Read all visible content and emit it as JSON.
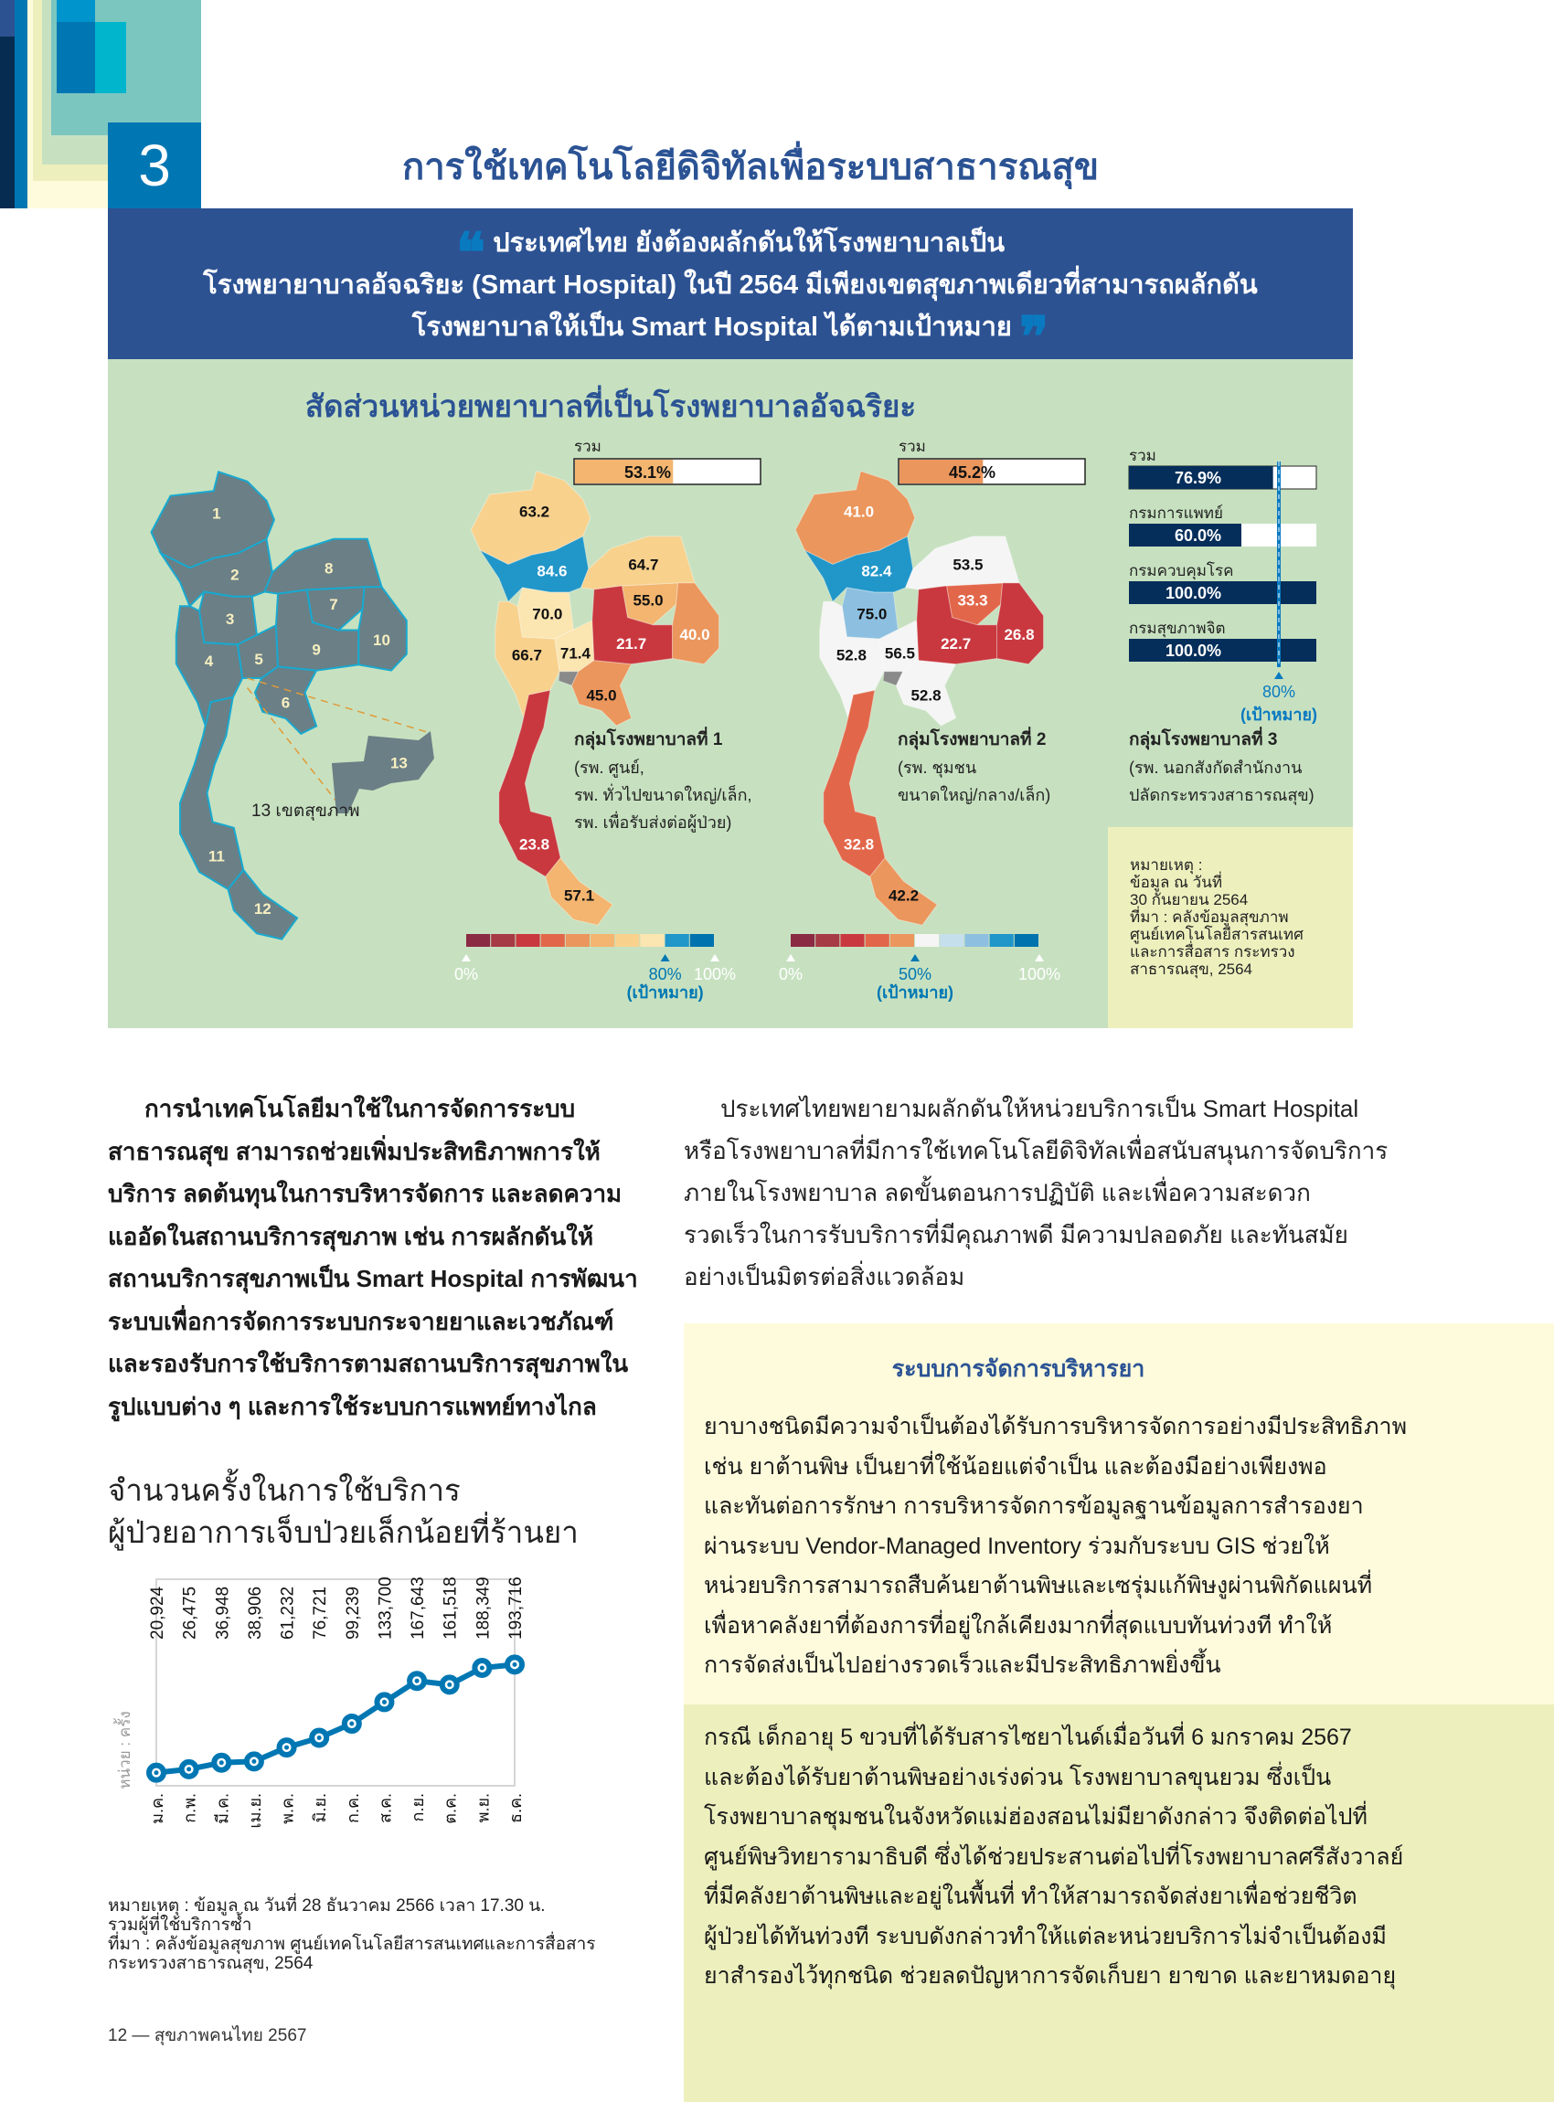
{
  "chapter": {
    "number": "3",
    "title": "การใช้เทคโนโลยีดิจิทัลเพื่อระบบสาธารณสุข"
  },
  "quote": {
    "lines": [
      "ประเทศไทย ยังต้องผลักดันให้โรงพยาบาลเป็น",
      "โรงพยายาบาลอัจฉริยะ (Smart Hospital) ในปี 2564 มีเพียงเขตสุขภาพเดียวที่สามารถผลักดัน",
      "โรงพยาบาลให้เป็น Smart Hospital ได้ตามเป้าหมาย"
    ]
  },
  "infographic": {
    "title": "สัดส่วนหน่วยพยาบาลที่เป็นโรงพยาบาลอัจฉริยะ",
    "region_map": {
      "caption": "13 เขตสุขภาพ",
      "region_labels": [
        "1",
        "2",
        "3",
        "4",
        "5",
        "6",
        "7",
        "8",
        "9",
        "10",
        "11",
        "12",
        "13"
      ],
      "fill_color": "#6b7f86",
      "border_color": "#18a9d0"
    },
    "total_label": "รวม",
    "groups": [
      {
        "title": "กลุ่มโรงพยาบาลที่ 1",
        "desc": [
          "(รพ. ศูนย์,",
          "รพ. ทั่วไปขนาดใหญ่/เล็ก,",
          "รพ. เพื่อรับส่งต่อผู้ป่วย)"
        ],
        "total": 53.1,
        "total_text": "53.1%",
        "total_color": "#f3b56f",
        "region_values": [
          63.2,
          84.6,
          70.0,
          66.7,
          71.4,
          45.0,
          55.0,
          64.7,
          21.7,
          40.0,
          23.8,
          57.1
        ],
        "region_value_text": [
          "63.2",
          "84.6",
          "70.0",
          "66.7",
          "71.4",
          "45.0",
          "55.0",
          "64.7",
          "21.7",
          "40.0",
          "23.8",
          "57.1"
        ],
        "scale_colors": [
          "#8a2a43",
          "#a63a45",
          "#c9383f",
          "#e2674a",
          "#eb965c",
          "#f3b56f",
          "#f8d18d",
          "#fbe5b0",
          "#2196c9",
          "#0072ad"
        ],
        "scale_labels": {
          "min": "0%",
          "target": "80%",
          "max": "100%",
          "target_note": "(เป้าหมาย)"
        },
        "target": 80
      },
      {
        "title": "กลุ่มโรงพยาบาลที่ 2",
        "desc": [
          "(รพ. ชุมชน",
          "ขนาดใหญ่/กลาง/เล็ก)"
        ],
        "total": 45.2,
        "total_text": "45.2%",
        "total_color": "#eb965c",
        "region_values": [
          41.0,
          82.4,
          75.0,
          52.8,
          56.5,
          52.8,
          33.3,
          53.5,
          22.7,
          26.8,
          32.8,
          42.2
        ],
        "region_value_text": [
          "41.0",
          "82.4",
          "75.0",
          "52.8",
          "56.5",
          "52.8",
          "33.3",
          "53.5",
          "22.7",
          "26.8",
          "32.8",
          "42.2"
        ],
        "scale_colors": [
          "#8a2a43",
          "#a63a45",
          "#c9383f",
          "#e2674a",
          "#eb965c",
          "#f5f5f5",
          "#c6dfec",
          "#8dc0e0",
          "#2196c9",
          "#0072ad"
        ],
        "scale_labels": {
          "min": "0%",
          "target": "50%",
          "max": "100%",
          "target_note": "(เป้าหมาย)"
        },
        "target": 50
      },
      {
        "title": "กลุ่มโรงพยาบาลที่ 3",
        "desc": [
          "(รพ. นอกสังกัดสำนักงาน",
          "ปลัดกระทรวงสาธารณสุข)"
        ],
        "bars": [
          {
            "label": "รวม",
            "value": 76.9,
            "text": "76.9%"
          },
          {
            "label": "กรมการแพทย์",
            "value": 60.0,
            "text": "60.0%"
          },
          {
            "label": "กรมควบคุมโรค",
            "value": 100.0,
            "text": "100.0%"
          },
          {
            "label": "กรมสุขภาพจิต",
            "value": 100.0,
            "text": "100.0%"
          }
        ],
        "bar_color": "#052e5a",
        "target": 80,
        "target_text": "80%",
        "target_note": "(เป้าหมาย)"
      }
    ],
    "note": [
      "หมายเหตุ :",
      "ข้อมูล ณ วันที่",
      "30 กันยายน 2564",
      "ที่มา : คลังข้อมูลสุขภาพ",
      "ศูนย์เทคโนโลยีสารสนเทศ",
      "และการสื่อสาร กระทรวง",
      "สาธารณสุข, 2564"
    ]
  },
  "left_paragraph": [
    "การนำเทคโนโลยีมาใช้ในการจัดการระบบ",
    "สาธารณสุข สามารถช่วยเพิ่มประสิทธิภาพการให้",
    "บริการ ลดต้นทุนในการบริหารจัดการ และลดความ",
    "แออัดในสถานบริการสุขภาพ เช่น การผลักดันให้",
    "สถานบริการสุขภาพเป็น Smart Hospital การพัฒนา",
    "ระบบเพื่อการจัดการระบบกระจายยาและเวชภัณฑ์",
    "และรองรับการใช้บริการตามสถานบริการสุขภาพใน",
    "รูปแบบต่าง ๆ และการใช้ระบบการแพทย์ทางไกล"
  ],
  "right_paragraph": [
    "ประเทศไทยพยายามผลักดันให้หน่วยบริการเป็น Smart Hospital",
    "หรือโรงพยาบาลที่มีการใช้เทคโนโลยีดิจิทัลเพื่อสนับสนุนการจัดบริการ",
    "ภายในโรงพยาบาล ลดขั้นตอนการปฏิบัติ และเพื่อความสะดวก",
    "รวดเร็วในการรับบริการที่มีคุณภาพดี มีความปลอดภัย และทันสมัย",
    "อย่างเป็นมิตรต่อสิ่งแวดล้อม"
  ],
  "drug_box": {
    "title": "ระบบการจัดการบริหารยา",
    "lines": [
      "ยาบางชนิดมีความจำเป็นต้องได้รับการบริหารจัดการอย่างมีประสิทธิภาพ",
      "เช่น ยาต้านพิษ เป็นยาที่ใช้น้อยแต่จำเป็น และต้องมีอย่างเพียงพอ",
      "และทันต่อการรักษา การบริหารจัดการข้อมูลฐานข้อมูลการสำรองยา",
      "ผ่านระบบ Vendor-Managed Inventory ร่วมกับระบบ GIS ช่วยให้",
      "หน่วยบริการสามารถสืบค้นยาต้านพิษและเซรุ่มแก้พิษงูผ่านพิกัดแผนที่",
      "เพื่อหาคลังยาที่ต้องการที่อยู่ใกล้เคียงมากที่สุดแบบทันท่วงที ทำให้",
      "การจัดส่งเป็นไปอย่างรวดเร็วและมีประสิทธิภาพยิ่งขึ้น"
    ]
  },
  "case_box": {
    "lines": [
      "กรณี เด็กอายุ 5 ขวบที่ได้รับสารไซยาไนด์เมื่อวันที่ 6 มกราคม 2567",
      "และต้องได้รับยาต้านพิษอย่างเร่งด่วน โรงพยาบาลขุนยวม ซึ่งเป็น",
      "โรงพยาบาลชุมชนในจังหวัดแม่ฮ่องสอนไม่มียาดังกล่าว จึงติดต่อไปที่",
      "ศูนย์พิษวิทยารามาธิบดี ซึ่งได้ช่วยประสานต่อไปที่โรงพยาบาลศรีสังวาลย์",
      "ที่มีคลังยาต้านพิษและอยู่ในพื้นที่ ทำให้สามารถจัดส่งยาเพื่อช่วยชีวิต",
      "ผู้ป่วยได้ทันท่วงที ระบบดังกล่าวทำให้แต่ละหน่วยบริการไม่จำเป็นต้องมี",
      "ยาสำรองไว้ทุกชนิด ช่วยลดปัญหาการจัดเก็บยา ยาขาด และยาหมดอายุ"
    ]
  },
  "chart_data": {
    "type": "line",
    "title": [
      "จำนวนครั้งในการใช้บริการ",
      "ผู้ป่วยอาการเจ็บป่วยเล็กน้อยที่ร้านยา"
    ],
    "ylabel": "หน่วย : ครั้ง",
    "categories": [
      "ม.ค.",
      "ก.พ.",
      "มี.ค.",
      "เม.ย.",
      "พ.ค.",
      "มิ.ย.",
      "ก.ค.",
      "ส.ค.",
      "ก.ย.",
      "ต.ค.",
      "พ.ย.",
      "ธ.ค."
    ],
    "values": [
      20924,
      26475,
      36948,
      38906,
      61232,
      76721,
      99239,
      133700,
      167643,
      161518,
      188349,
      193716
    ],
    "value_labels": [
      "20,924",
      "26,475",
      "36,948",
      "38,906",
      "61,232",
      "76,721",
      "99,239",
      "133,700",
      "167,643",
      "161,518",
      "188,349",
      "193,716"
    ],
    "ylim": [
      0,
      330000
    ],
    "grid": false,
    "color": "#0077b3",
    "notes": [
      "หมายเหตุ : ข้อมูล ณ วันที่ 28 ธันวาคม 2566 เวลา 17.30 น.",
      "รวมผู้ที่ใช้บริการซ้ำ",
      "ที่มา : คลังข้อมูลสุขภาพ ศูนย์เทคโนโลยีสารสนเทศและการสื่อสาร",
      "กระทรวงสาธารณสุข, 2564"
    ]
  },
  "footer": "12 — สุขภาพคนไทย 2567"
}
